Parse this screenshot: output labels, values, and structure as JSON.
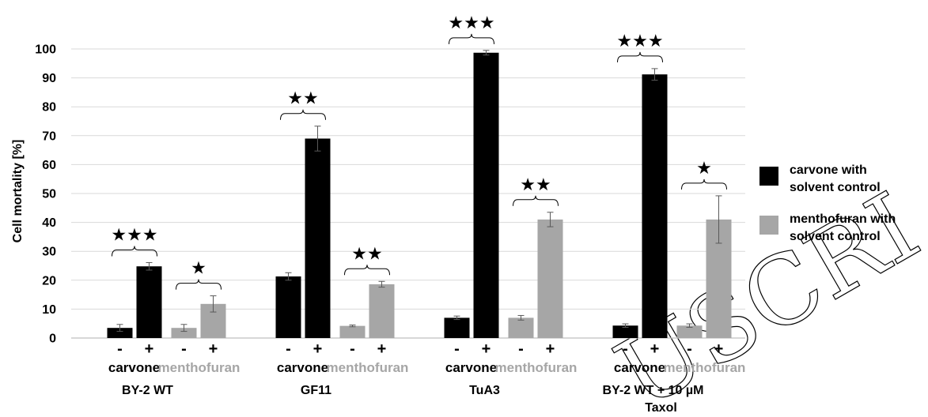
{
  "chart_data": {
    "type": "bar",
    "ylabel": "Cell mortality [%]",
    "ylim": [
      0,
      100
    ],
    "ytick_step": 10,
    "grid": true,
    "legend_position": "right",
    "colors": {
      "carvone": "#000000",
      "menthofuran": "#a6a6a6"
    },
    "series": [
      {
        "key": "carvone",
        "name": "carvone with solvent control"
      },
      {
        "key": "menthofuran",
        "name": "menthofuran with solvent control"
      }
    ],
    "treatment_labels": {
      "control": "-",
      "treated": "+"
    },
    "groups": [
      {
        "name": "BY-2 WT",
        "pairs": [
          {
            "series": "carvone",
            "label": "carvone",
            "control": 3.5,
            "control_err": 1.2,
            "treated": 24.8,
            "treated_err": 1.3,
            "sig": "★★★"
          },
          {
            "series": "menthofuran",
            "label": "menthofuran",
            "control": 3.5,
            "control_err": 1.2,
            "treated": 11.8,
            "treated_err": 2.8,
            "sig": "★"
          }
        ]
      },
      {
        "name": "GF11",
        "pairs": [
          {
            "series": "carvone",
            "label": "carvone",
            "control": 21.3,
            "control_err": 1.3,
            "treated": 69.0,
            "treated_err": 4.3,
            "sig": "★★"
          },
          {
            "series": "menthofuran",
            "label": "menthofuran",
            "control": 4.2,
            "control_err": 0.3,
            "treated": 18.6,
            "treated_err": 1.0,
            "sig": "★★"
          }
        ]
      },
      {
        "name": "TuA3",
        "pairs": [
          {
            "series": "carvone",
            "label": "carvone",
            "control": 7.0,
            "control_err": 0.6,
            "treated": 98.7,
            "treated_err": 0.8,
            "sig": "★★★"
          },
          {
            "series": "menthofuran",
            "label": "menthofuran",
            "control": 7.0,
            "control_err": 0.8,
            "treated": 41.0,
            "treated_err": 2.5,
            "sig": "★★"
          }
        ]
      },
      {
        "name": "BY-2 WT + 10 µM Taxol",
        "pairs": [
          {
            "series": "carvone",
            "label": "carvone",
            "control": 4.3,
            "control_err": 0.6,
            "treated": 91.2,
            "treated_err": 2.0,
            "sig": "★★★"
          },
          {
            "series": "menthofuran",
            "label": "menthofuran",
            "control": 4.3,
            "control_err": 0.6,
            "treated": 41.0,
            "treated_err": 8.2,
            "sig": "★"
          }
        ]
      }
    ]
  },
  "watermark": "USCRI"
}
